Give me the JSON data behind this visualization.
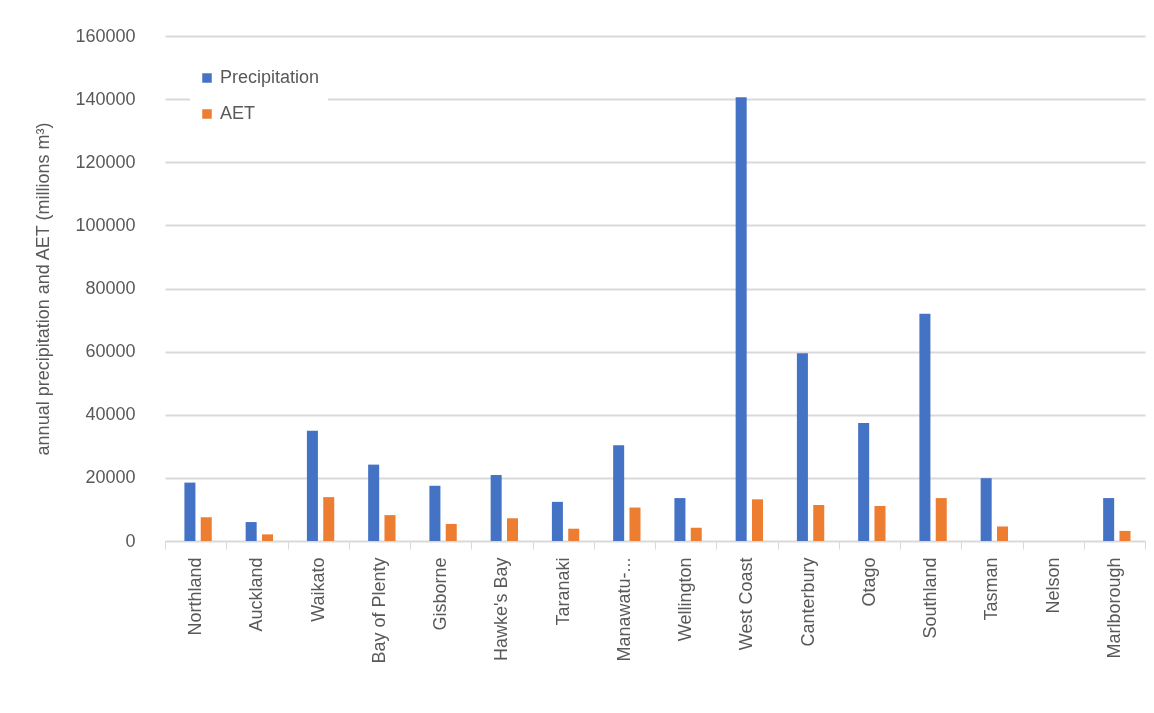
{
  "chart_data": {
    "type": "bar",
    "ylabel": "annual precipitation and AET  (millions m³)",
    "categories": [
      "Northland",
      "Auckland",
      "Waikato",
      "Bay of Plenty",
      "Gisborne",
      "Hawke's Bay",
      "Taranaki",
      "Manawatu-...",
      "Wellington",
      "West Coast",
      "Canterbury",
      "Otago",
      "Southland",
      "Tasman",
      "Nelson",
      "Marlborough"
    ],
    "series": [
      {
        "name": "Precipitation",
        "color": "#4472c4",
        "values": [
          18500,
          6000,
          34900,
          24200,
          17500,
          20900,
          12400,
          30300,
          13600,
          140600,
          59500,
          37400,
          72000,
          19900,
          null,
          13600
        ]
      },
      {
        "name": "AET",
        "color": "#ed7d31",
        "values": [
          7500,
          2100,
          13900,
          8200,
          5400,
          7200,
          3900,
          10600,
          4200,
          13200,
          11400,
          11100,
          13600,
          4600,
          null,
          3200
        ]
      }
    ],
    "ylim": [
      0,
      160000
    ],
    "yticks": [
      0,
      20000,
      40000,
      60000,
      80000,
      100000,
      120000,
      140000,
      160000
    ],
    "grid": "y",
    "legend": "top left"
  }
}
